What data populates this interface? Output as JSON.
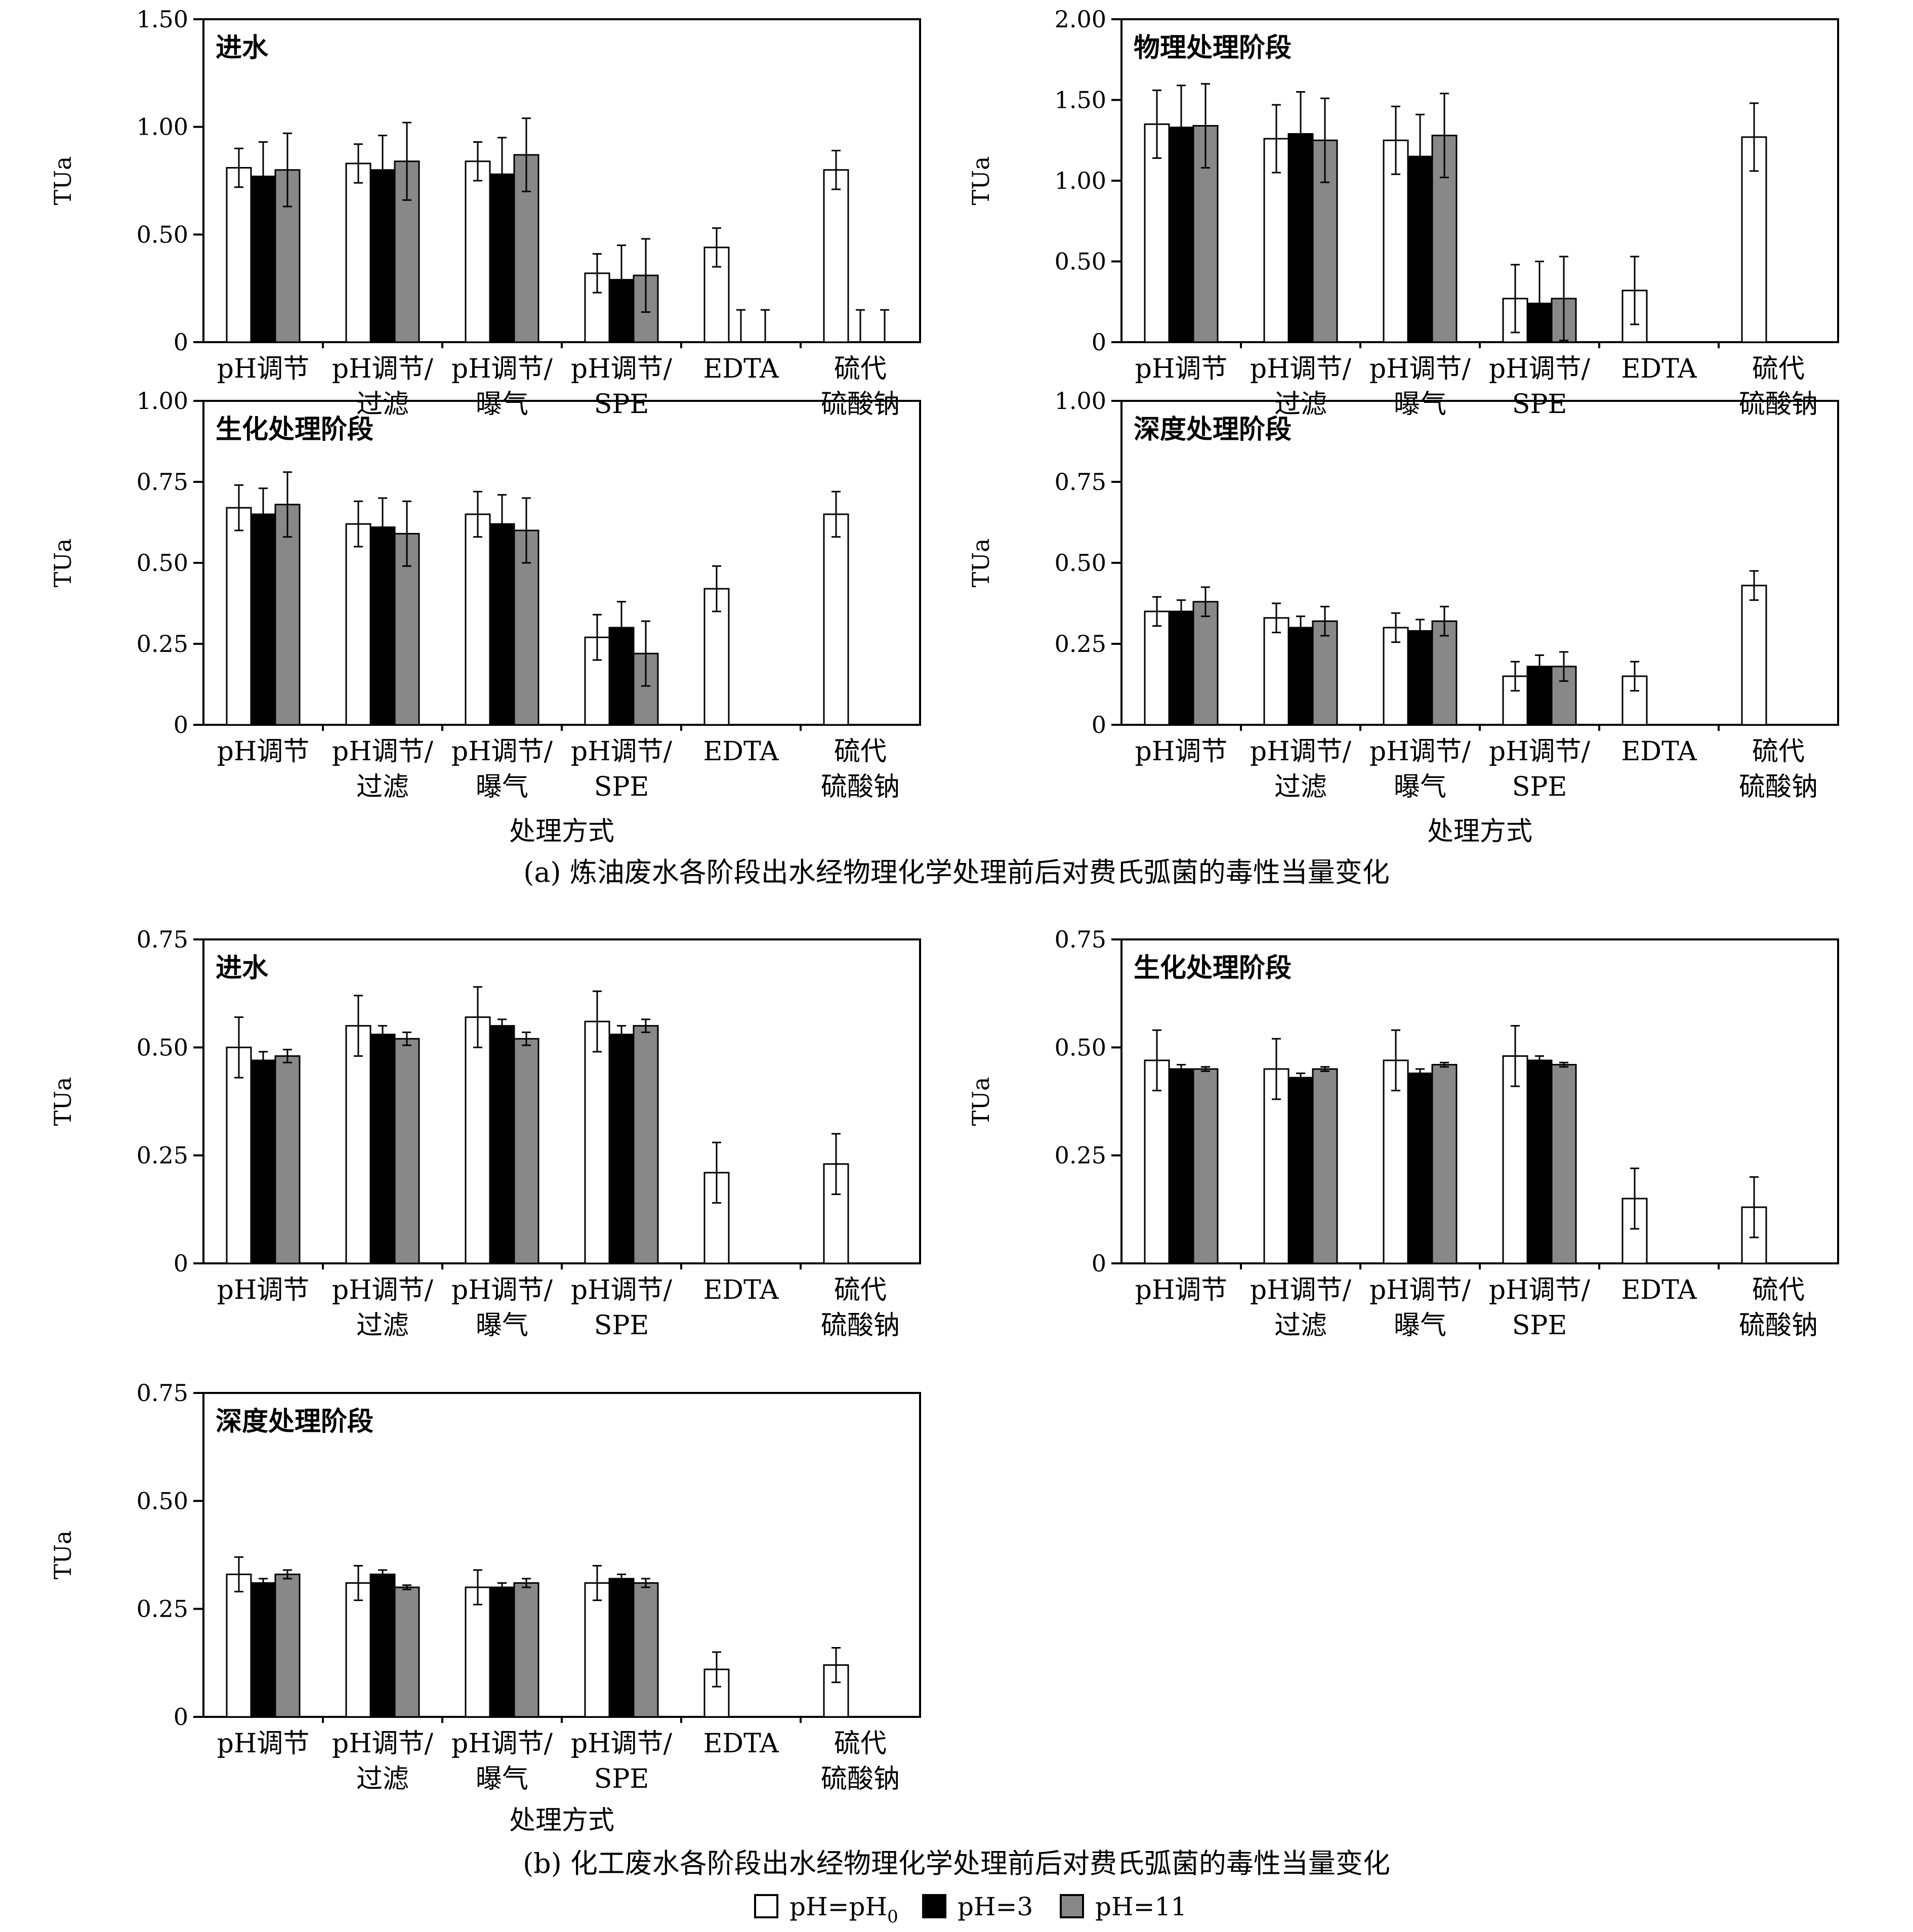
{
  "colors": {
    "pH0": "#ffffff",
    "pH3": "#000000",
    "pH11": "#888888",
    "axis": "#000000"
  },
  "legend": [
    {
      "key": "pH0",
      "label": "pH=pH",
      "sub": "0"
    },
    {
      "key": "pH3",
      "label": "pH=3",
      "sub": ""
    },
    {
      "key": "pH11",
      "label": "pH=11",
      "sub": ""
    }
  ],
  "captions": {
    "a": "(a) 炼油废水各阶段出水经物理化学处理前后对费氏弧菌的毒性当量变化",
    "b": "(b) 化工废水各阶段出水经物理化学处理前后对费氏弧菌的毒性当量变化"
  },
  "xlabel": "处理方式",
  "chart_data": [
    {
      "type": "bar",
      "group": "a",
      "title": "进水",
      "ylabel": "TUa",
      "ylim": [
        0,
        1.5
      ],
      "yticks": [
        "0",
        "0.50",
        "1.00",
        "1.50"
      ],
      "ytick_values": [
        0,
        0.5,
        1.0,
        1.5
      ],
      "categories": [
        [
          "pH调节"
        ],
        [
          "pH调节/",
          "过滤"
        ],
        [
          "pH调节/",
          "曝气"
        ],
        [
          "pH调节/",
          "SPE"
        ],
        [
          "EDTA"
        ],
        [
          "硫代",
          "硫酸钠"
        ]
      ],
      "series": [
        {
          "key": "pH0",
          "name": "pH=pH0",
          "values": [
            0.81,
            0.83,
            0.84,
            0.32,
            0.44,
            0.8
          ],
          "errors": [
            0.09,
            0.09,
            0.09,
            0.09,
            0.09,
            0.09
          ]
        },
        {
          "key": "pH3",
          "name": "pH=3",
          "values": [
            0.77,
            0.8,
            0.78,
            0.29,
            0,
            0
          ],
          "errors": [
            0.16,
            0.16,
            0.17,
            0.16,
            0.15,
            0.15
          ]
        },
        {
          "key": "pH11",
          "name": "pH=11",
          "values": [
            0.8,
            0.84,
            0.87,
            0.31,
            0,
            0
          ],
          "errors": [
            0.17,
            0.18,
            0.17,
            0.17,
            0.15,
            0.15
          ]
        }
      ]
    },
    {
      "type": "bar",
      "group": "a",
      "title": "物理处理阶段",
      "ylabel": "TUa",
      "ylim": [
        0,
        2.0
      ],
      "yticks": [
        "0",
        "0.50",
        "1.00",
        "1.50",
        "2.00"
      ],
      "ytick_values": [
        0,
        0.5,
        1.0,
        1.5,
        2.0
      ],
      "categories": [
        [
          "pH调节"
        ],
        [
          "pH调节/",
          "过滤"
        ],
        [
          "pH调节/",
          "曝气"
        ],
        [
          "pH调节/",
          "SPE"
        ],
        [
          "EDTA"
        ],
        [
          "硫代",
          "硫酸钠"
        ]
      ],
      "series": [
        {
          "key": "pH0",
          "name": "pH=pH0",
          "values": [
            1.35,
            1.26,
            1.25,
            0.27,
            0.32,
            1.27
          ],
          "errors": [
            0.21,
            0.21,
            0.21,
            0.21,
            0.21,
            0.21
          ]
        },
        {
          "key": "pH3",
          "name": "pH=3",
          "values": [
            1.33,
            1.29,
            1.15,
            0.24,
            0,
            0
          ],
          "errors": [
            0.26,
            0.26,
            0.26,
            0.26,
            0,
            0
          ]
        },
        {
          "key": "pH11",
          "name": "pH=11",
          "values": [
            1.34,
            1.25,
            1.28,
            0.27,
            0,
            0
          ],
          "errors": [
            0.26,
            0.26,
            0.26,
            0.26,
            0,
            0
          ]
        }
      ]
    },
    {
      "type": "bar",
      "group": "a",
      "title": "生化处理阶段",
      "ylabel": "TUa",
      "ylim": [
        0,
        1.0
      ],
      "yticks": [
        "0",
        "0.25",
        "0.50",
        "0.75",
        "1.00"
      ],
      "ytick_values": [
        0,
        0.25,
        0.5,
        0.75,
        1.0
      ],
      "categories": [
        [
          "pH调节"
        ],
        [
          "pH调节/",
          "过滤"
        ],
        [
          "pH调节/",
          "曝气"
        ],
        [
          "pH调节/",
          "SPE"
        ],
        [
          "EDTA"
        ],
        [
          "硫代",
          "硫酸钠"
        ]
      ],
      "series": [
        {
          "key": "pH0",
          "name": "pH=pH0",
          "values": [
            0.67,
            0.62,
            0.65,
            0.27,
            0.42,
            0.65
          ],
          "errors": [
            0.07,
            0.07,
            0.07,
            0.07,
            0.07,
            0.07
          ]
        },
        {
          "key": "pH3",
          "name": "pH=3",
          "values": [
            0.65,
            0.61,
            0.62,
            0.3,
            0,
            0
          ],
          "errors": [
            0.08,
            0.09,
            0.09,
            0.08,
            0,
            0
          ]
        },
        {
          "key": "pH11",
          "name": "pH=11",
          "values": [
            0.68,
            0.59,
            0.6,
            0.22,
            0,
            0
          ],
          "errors": [
            0.1,
            0.1,
            0.1,
            0.1,
            0,
            0
          ]
        }
      ]
    },
    {
      "type": "bar",
      "group": "a",
      "title": "深度处理阶段",
      "ylabel": "TUa",
      "ylim": [
        0,
        1.0
      ],
      "yticks": [
        "0",
        "0.25",
        "0.50",
        "0.75",
        "1.00"
      ],
      "ytick_values": [
        0,
        0.25,
        0.5,
        0.75,
        1.0
      ],
      "categories": [
        [
          "pH调节"
        ],
        [
          "pH调节/",
          "过滤"
        ],
        [
          "pH调节/",
          "曝气"
        ],
        [
          "pH调节/",
          "SPE"
        ],
        [
          "EDTA"
        ],
        [
          "硫代",
          "硫酸钠"
        ]
      ],
      "series": [
        {
          "key": "pH0",
          "name": "pH=pH0",
          "values": [
            0.35,
            0.33,
            0.3,
            0.15,
            0.15,
            0.43
          ],
          "errors": [
            0.045,
            0.045,
            0.045,
            0.045,
            0.045,
            0.045
          ]
        },
        {
          "key": "pH3",
          "name": "pH=3",
          "values": [
            0.35,
            0.3,
            0.29,
            0.18,
            0,
            0
          ],
          "errors": [
            0.035,
            0.035,
            0.035,
            0.035,
            0,
            0
          ]
        },
        {
          "key": "pH11",
          "name": "pH=11",
          "values": [
            0.38,
            0.32,
            0.32,
            0.18,
            0,
            0
          ],
          "errors": [
            0.045,
            0.045,
            0.045,
            0.045,
            0,
            0
          ]
        }
      ]
    },
    {
      "type": "bar",
      "group": "b",
      "title": "进水",
      "ylabel": "TUa",
      "ylim": [
        0,
        0.75
      ],
      "yticks": [
        "0",
        "0.25",
        "0.50",
        "0.75"
      ],
      "ytick_values": [
        0,
        0.25,
        0.5,
        0.75
      ],
      "categories": [
        [
          "pH调节"
        ],
        [
          "pH调节/",
          "过滤"
        ],
        [
          "pH调节/",
          "曝气"
        ],
        [
          "pH调节/",
          "SPE"
        ],
        [
          "EDTA"
        ],
        [
          "硫代",
          "硫酸钠"
        ]
      ],
      "series": [
        {
          "key": "pH0",
          "name": "pH=pH0",
          "values": [
            0.5,
            0.55,
            0.57,
            0.56,
            0.21,
            0.23
          ],
          "errors": [
            0.07,
            0.07,
            0.07,
            0.07,
            0.07,
            0.07
          ]
        },
        {
          "key": "pH3",
          "name": "pH=3",
          "values": [
            0.47,
            0.53,
            0.55,
            0.53,
            0,
            0
          ],
          "errors": [
            0.02,
            0.02,
            0.015,
            0.02,
            0,
            0
          ]
        },
        {
          "key": "pH11",
          "name": "pH=11",
          "values": [
            0.48,
            0.52,
            0.52,
            0.55,
            0,
            0
          ],
          "errors": [
            0.015,
            0.015,
            0.015,
            0.015,
            0,
            0
          ]
        }
      ]
    },
    {
      "type": "bar",
      "group": "b",
      "title": "生化处理阶段",
      "ylabel": "TUa",
      "ylim": [
        0,
        0.75
      ],
      "yticks": [
        "0",
        "0.25",
        "0.50",
        "0.75"
      ],
      "ytick_values": [
        0,
        0.25,
        0.5,
        0.75
      ],
      "categories": [
        [
          "pH调节"
        ],
        [
          "pH调节/",
          "过滤"
        ],
        [
          "pH调节/",
          "曝气"
        ],
        [
          "pH调节/",
          "SPE"
        ],
        [
          "EDTA"
        ],
        [
          "硫代",
          "硫酸钠"
        ]
      ],
      "series": [
        {
          "key": "pH0",
          "name": "pH=pH0",
          "values": [
            0.47,
            0.45,
            0.47,
            0.48,
            0.15,
            0.13
          ],
          "errors": [
            0.07,
            0.07,
            0.07,
            0.07,
            0.07,
            0.07
          ]
        },
        {
          "key": "pH3",
          "name": "pH=3",
          "values": [
            0.45,
            0.43,
            0.44,
            0.47,
            0,
            0
          ],
          "errors": [
            0.01,
            0.01,
            0.01,
            0.01,
            0,
            0
          ]
        },
        {
          "key": "pH11",
          "name": "pH=11",
          "values": [
            0.45,
            0.45,
            0.46,
            0.46,
            0,
            0
          ],
          "errors": [
            0.005,
            0.005,
            0.005,
            0.005,
            0,
            0
          ]
        }
      ]
    },
    {
      "type": "bar",
      "group": "b",
      "title": "深度处理阶段",
      "ylabel": "TUa",
      "ylim": [
        0,
        0.75
      ],
      "yticks": [
        "0",
        "0.25",
        "0.50",
        "0.75"
      ],
      "ytick_values": [
        0,
        0.25,
        0.5,
        0.75
      ],
      "categories": [
        [
          "pH调节"
        ],
        [
          "pH调节/",
          "过滤"
        ],
        [
          "pH调节/",
          "曝气"
        ],
        [
          "pH调节/",
          "SPE"
        ],
        [
          "EDTA"
        ],
        [
          "硫代",
          "硫酸钠"
        ]
      ],
      "series": [
        {
          "key": "pH0",
          "name": "pH=pH0",
          "values": [
            0.33,
            0.31,
            0.3,
            0.31,
            0.11,
            0.12
          ],
          "errors": [
            0.04,
            0.04,
            0.04,
            0.04,
            0.04,
            0.04
          ]
        },
        {
          "key": "pH3",
          "name": "pH=3",
          "values": [
            0.31,
            0.33,
            0.3,
            0.32,
            0,
            0
          ],
          "errors": [
            0.01,
            0.01,
            0.01,
            0.01,
            0,
            0
          ]
        },
        {
          "key": "pH11",
          "name": "pH=11",
          "values": [
            0.33,
            0.3,
            0.31,
            0.31,
            0,
            0
          ],
          "errors": [
            0.01,
            0.005,
            0.01,
            0.01,
            0,
            0
          ]
        }
      ]
    }
  ]
}
